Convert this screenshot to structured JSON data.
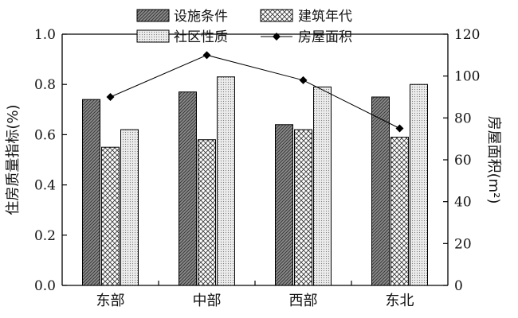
{
  "chart_data": {
    "type": "bar",
    "categories": [
      "东部",
      "中部",
      "西部",
      "东北"
    ],
    "series": [
      {
        "name": "设施条件",
        "values": [
          0.74,
          0.77,
          0.64,
          0.75
        ],
        "pattern": "stripes"
      },
      {
        "name": "建筑年代",
        "values": [
          0.55,
          0.58,
          0.62,
          0.59
        ],
        "pattern": "crosshatch"
      },
      {
        "name": "社区性质",
        "values": [
          0.62,
          0.83,
          0.79,
          0.8
        ],
        "pattern": "dots"
      }
    ],
    "line_series": {
      "name": "房屋面积",
      "values": [
        90,
        110,
        98,
        75
      ],
      "axis": "right"
    },
    "ylabel": "住房质量指标(%)",
    "ylabel_right": "房屋面积(m²)",
    "ylim": [
      0,
      1.0
    ],
    "ylim_right": [
      0,
      120
    ],
    "yticks": [
      "0.0",
      "0.2",
      "0.4",
      "0.6",
      "0.8",
      "1.0"
    ],
    "yticks_right": [
      "0",
      "20",
      "40",
      "60",
      "80",
      "100",
      "120"
    ],
    "legend_position": "top",
    "grid": false
  }
}
